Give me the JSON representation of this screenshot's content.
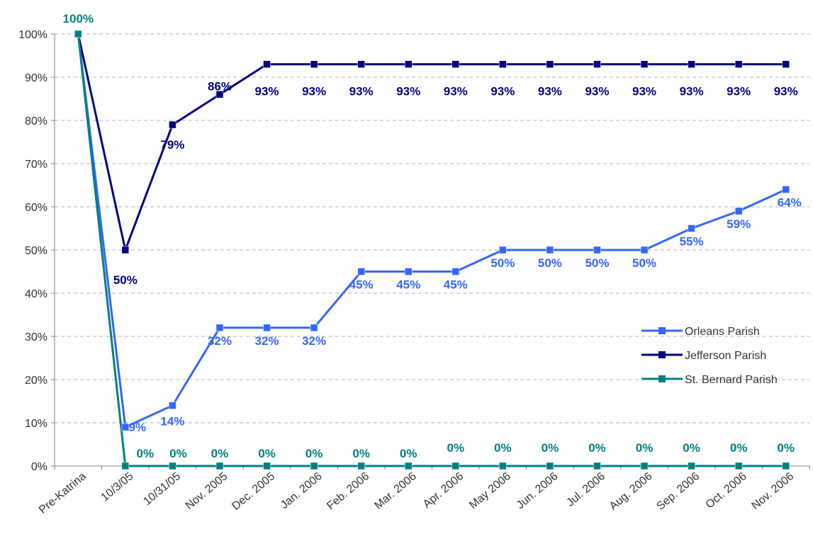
{
  "chart_data": {
    "type": "line",
    "title": "",
    "xlabel": "",
    "ylabel": "",
    "categories": [
      "Pre-Katrina",
      "10/3/05",
      "10/31/05",
      "Nov. 2005",
      "Dec. 2005",
      "Jan. 2006",
      "Feb. 2006",
      "Mar. 2006",
      "Apr. 2006",
      "May 2006",
      "Jun. 2006",
      "Jul. 2006",
      "Aug. 2006",
      "Sep. 2006",
      "Oct. 2006",
      "Nov. 2006"
    ],
    "ylim": [
      0,
      100
    ],
    "yticks": [
      "0%",
      "10%",
      "20%",
      "30%",
      "40%",
      "50%",
      "60%",
      "70%",
      "80%",
      "90%",
      "100%"
    ],
    "grid": "horizontal dashed",
    "legend": "right",
    "series": [
      {
        "name": "Orleans Parish",
        "color": "#3366ff",
        "values": [
          100,
          9,
          14,
          32,
          32,
          32,
          45,
          45,
          45,
          50,
          50,
          50,
          50,
          55,
          59,
          64
        ],
        "labels": [
          "",
          "9%",
          "14%",
          "32%",
          "32%",
          "32%",
          "45%",
          "45%",
          "45%",
          "50%",
          "50%",
          "50%",
          "50%",
          "55%",
          "59%",
          "64%"
        ]
      },
      {
        "name": "Jefferson Parish",
        "color": "#000080",
        "values": [
          100,
          50,
          79,
          86,
          93,
          93,
          93,
          93,
          93,
          93,
          93,
          93,
          93,
          93,
          93,
          93
        ],
        "labels": [
          "",
          "50%",
          "79%",
          "86%",
          "93%",
          "93%",
          "93%",
          "93%",
          "93%",
          "93%",
          "93%",
          "93%",
          "93%",
          "93%",
          "93%",
          "93%"
        ]
      },
      {
        "name": "St. Bernard Parish",
        "color": "#008080",
        "values": [
          100,
          0,
          0,
          0,
          0,
          0,
          0,
          0,
          0,
          0,
          0,
          0,
          0,
          0,
          0,
          0
        ],
        "labels": [
          "100%",
          "0%",
          "0%",
          "0%",
          "0%",
          "0%",
          "0%",
          "0%",
          "0%",
          "0%",
          "0%",
          "0%",
          "0%",
          "0%",
          "0%",
          "0%"
        ]
      }
    ]
  }
}
